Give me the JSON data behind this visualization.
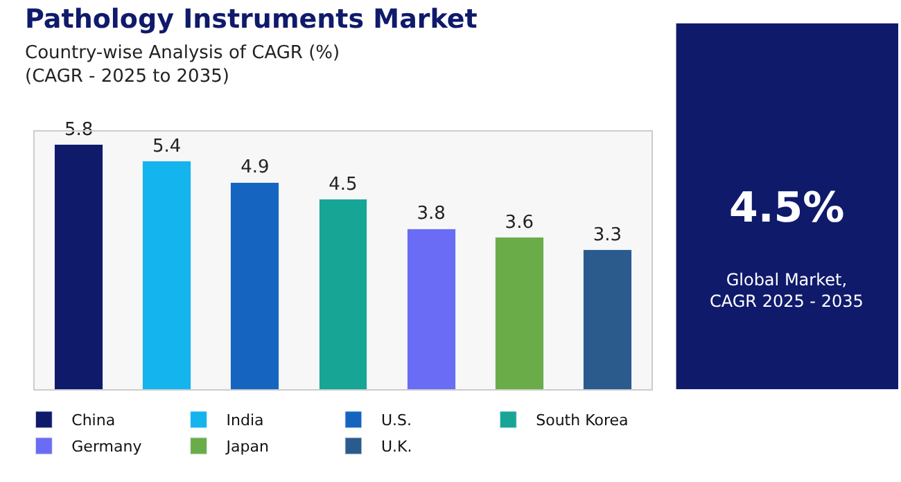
{
  "chart_data": {
    "type": "bar",
    "title": "Pathology Instruments Market",
    "subtitle": "Country-wise Analysis of CAGR (%)\n(CAGR - 2025 to 2035)",
    "categories": [
      null,
      null,
      null,
      null,
      null,
      null,
      null
    ],
    "series": [
      {
        "name": "China",
        "color": "#0f1a6b",
        "values": [
          5.8,
          null,
          null,
          null,
          null,
          null,
          null
        ]
      },
      {
        "name": "India",
        "color": "#14b4ee",
        "values": [
          null,
          5.4,
          null,
          null,
          null,
          null,
          null
        ]
      },
      {
        "name": "U.S.",
        "color": "#1565c0",
        "values": [
          null,
          null,
          4.9,
          null,
          null,
          null,
          null
        ]
      },
      {
        "name": "South Korea",
        "color": "#17a596",
        "values": [
          null,
          null,
          null,
          4.5,
          null,
          null,
          null
        ]
      },
      {
        "name": "Germany",
        "color": "#6b6cf5",
        "values": [
          null,
          null,
          null,
          null,
          3.8,
          null,
          null
        ]
      },
      {
        "name": "Japan",
        "color": "#6aad48",
        "values": [
          null,
          null,
          null,
          null,
          null,
          3.6,
          null
        ]
      },
      {
        "name": "U.K.",
        "color": "#2b5b8c",
        "values": [
          null,
          null,
          null,
          null,
          null,
          null,
          3.3
        ]
      }
    ],
    "stacked": true,
    "data_labels": true,
    "legend": "bottom",
    "grid": false,
    "tick_labels": false,
    "annotations": [
      "4.5%",
      "Global Market,\nCAGR 2025 - 2035"
    ]
  }
}
